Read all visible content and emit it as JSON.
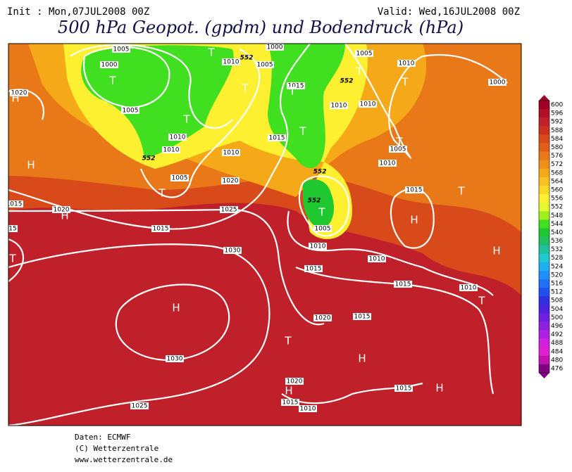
{
  "header": {
    "init": "Init : Mon,07JUL2008 00Z",
    "valid": "Valid: Wed,16JUL2008 00Z",
    "title": "500 hPa Geopot. (gpdm) und Bodendruck (hPa)"
  },
  "map": {
    "isobar_labels": [
      1005,
      1000,
      1005,
      1010,
      1010,
      1005,
      1010,
      1005,
      1000,
      1005,
      1010,
      1000,
      1020,
      1015,
      1010,
      1010,
      1015,
      1010,
      1005,
      1010,
      1020,
      1015,
      1015,
      1020,
      1025,
      1015,
      1005,
      1010,
      15,
      1030,
      1010,
      1015,
      1015,
      1010,
      1020,
      1015,
      1030,
      1020,
      1015,
      1015,
      1010,
      1025
    ],
    "geopotential_labels": [
      552,
      552,
      552,
      552,
      552
    ],
    "pressure_centers": [
      "T",
      "T",
      "T",
      "T",
      "T",
      "T",
      "T",
      "T",
      "T",
      "T",
      "T",
      "T",
      "H",
      "H",
      "H",
      "T",
      "H",
      "H",
      "H",
      "T",
      "T",
      "H",
      "H",
      "H",
      "T"
    ]
  },
  "colorbar": {
    "levels": [
      600,
      596,
      592,
      588,
      584,
      580,
      576,
      572,
      568,
      564,
      560,
      556,
      552,
      548,
      544,
      540,
      536,
      532,
      528,
      524,
      520,
      516,
      512,
      508,
      504,
      500,
      496,
      492,
      488,
      484,
      480,
      476
    ],
    "colors": [
      "#9e0028",
      "#b0102a",
      "#c0202a",
      "#cc3020",
      "#d84a1a",
      "#e06018",
      "#e87818",
      "#f09018",
      "#f5a818",
      "#f8c020",
      "#fad828",
      "#fcf030",
      "#e8f830",
      "#a0f020",
      "#40e020",
      "#20c830",
      "#20c060",
      "#20c0a0",
      "#20c8d0",
      "#20b0f0",
      "#2090f8",
      "#2070f8",
      "#2050f0",
      "#3030e0",
      "#5020e0",
      "#7020e0",
      "#9020e0",
      "#b020e0",
      "#d020e0",
      "#e020d0",
      "#c010b0",
      "#800080"
    ]
  },
  "footer": {
    "data": "Daten: ECMWF",
    "copyright": "(C) Wetterzentrale",
    "url": "www.wetterzentrale.de"
  }
}
